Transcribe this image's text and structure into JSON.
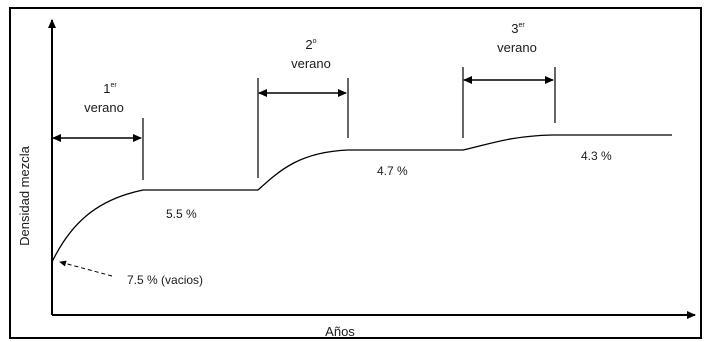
{
  "axes": {
    "x_label": "Años",
    "y_label": "Densidad  mezcla"
  },
  "summers": [
    {
      "num": "1",
      "sup": "er",
      "word": "verano"
    },
    {
      "num": "2",
      "sup": "o",
      "word": "verano"
    },
    {
      "num": "3",
      "sup": "er",
      "word": "verano"
    }
  ],
  "voids": [
    {
      "label": "7.5 % (vacios)"
    },
    {
      "label": "5.5 %"
    },
    {
      "label": "4.7 %"
    },
    {
      "label": "4.3 %"
    }
  ],
  "colors": {
    "line": "#000000",
    "frame": "#000000",
    "text": "#1a1a1a"
  }
}
